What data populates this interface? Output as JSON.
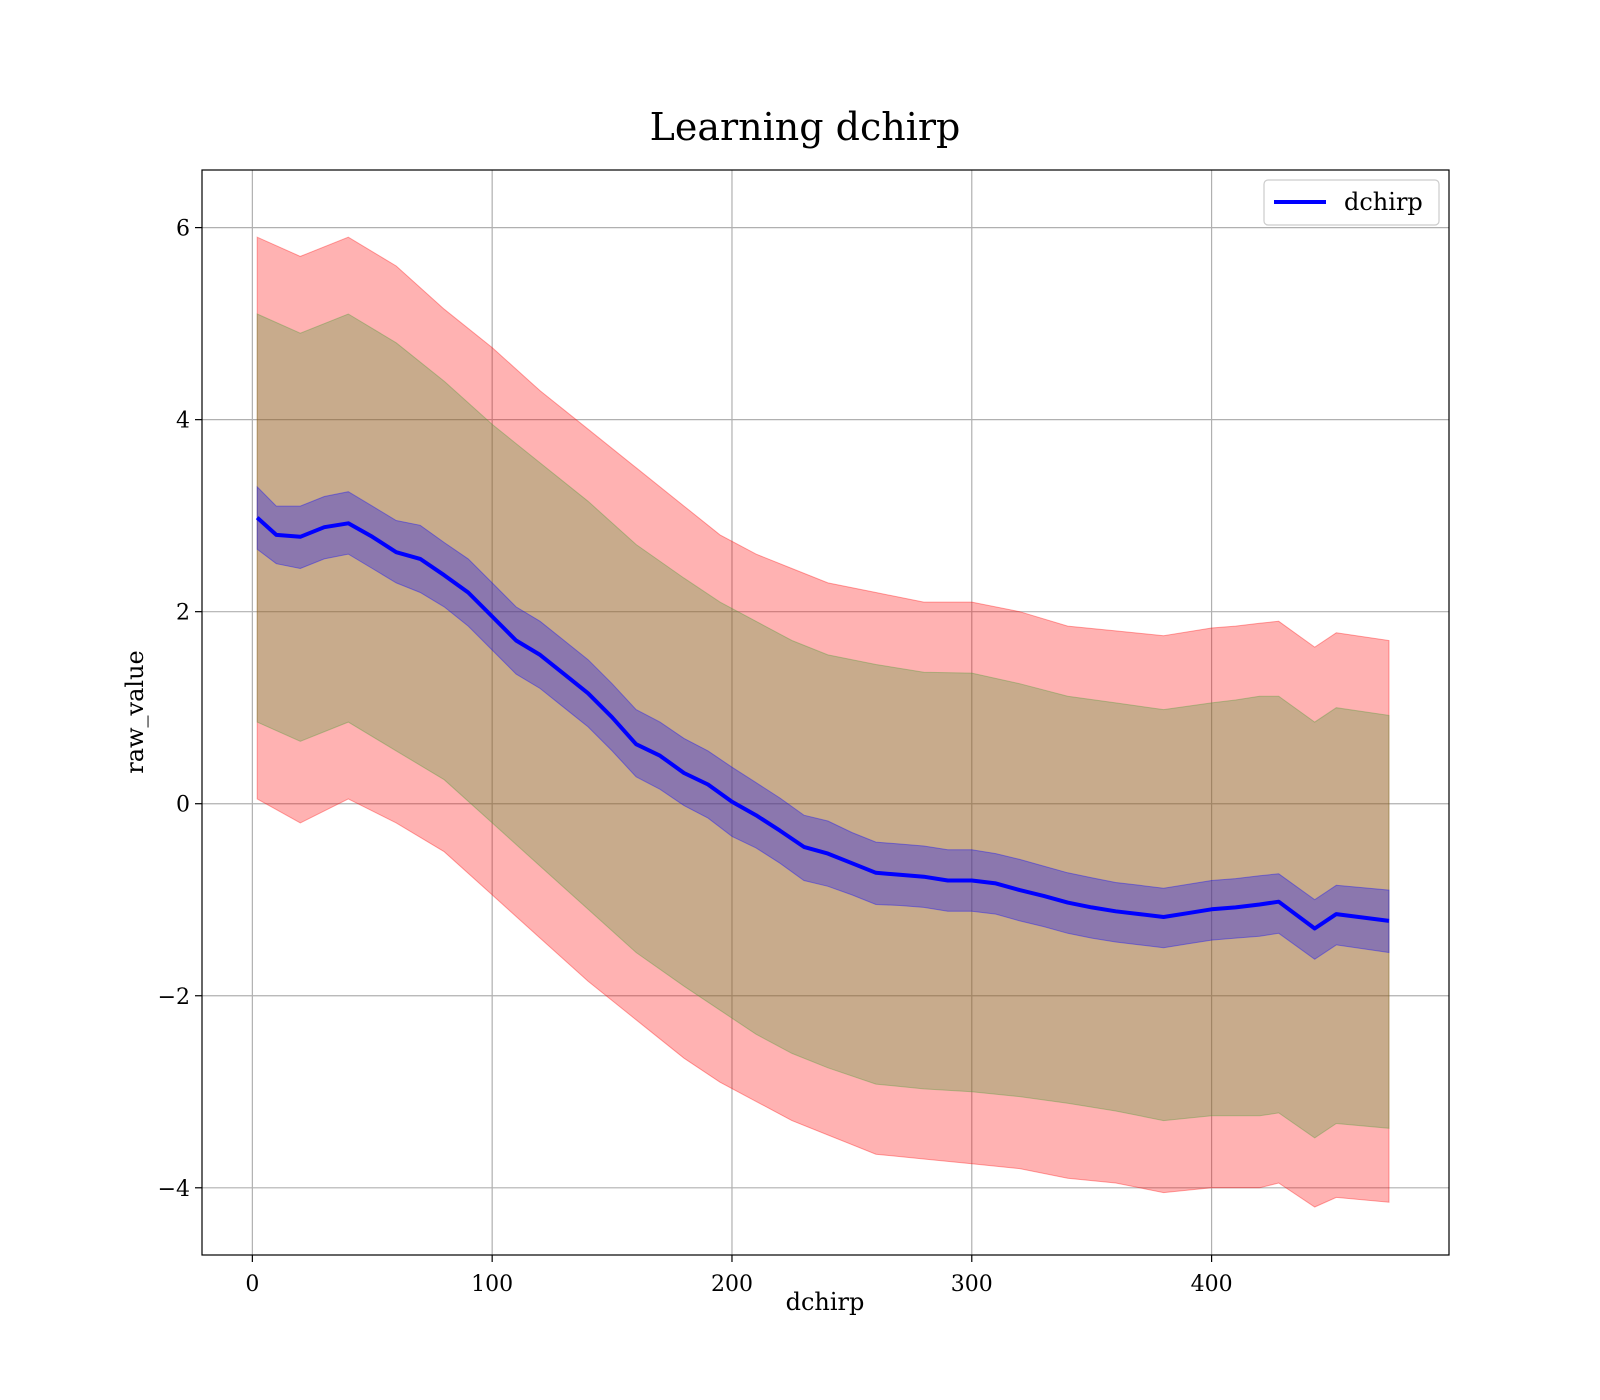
{
  "chart_data": {
    "type": "line",
    "title": "Learning dchirp",
    "xlabel": "dchirp",
    "ylabel": "raw_value",
    "xlim": [
      -21,
      499
    ],
    "ylim": [
      -4.7,
      6.6
    ],
    "xticks": [
      0,
      100,
      200,
      300,
      400
    ],
    "yticks": [
      -4,
      -2,
      0,
      2,
      4,
      6
    ],
    "xtick_labels": [
      "0",
      "100",
      "200",
      "300",
      "400"
    ],
    "ytick_labels": [
      "−4",
      "−2",
      "0",
      "2",
      "4",
      "6"
    ],
    "grid": true,
    "legend_position": "top-right",
    "series": [
      {
        "name": "dchirp",
        "color": "#0000ff",
        "x": [
          2,
          10,
          20,
          30,
          40,
          50,
          60,
          70,
          80,
          90,
          100,
          110,
          120,
          130,
          140,
          150,
          160,
          170,
          180,
          190,
          200,
          210,
          220,
          230,
          240,
          250,
          260,
          270,
          280,
          290,
          300,
          310,
          320,
          330,
          340,
          350,
          360,
          370,
          380,
          390,
          400,
          410,
          420,
          428,
          443,
          452,
          474
        ],
        "y": [
          2.98,
          2.8,
          2.78,
          2.88,
          2.92,
          2.78,
          2.62,
          2.55,
          2.38,
          2.2,
          1.95,
          1.7,
          1.55,
          1.35,
          1.15,
          0.9,
          0.62,
          0.5,
          0.32,
          0.2,
          0.02,
          -0.12,
          -0.28,
          -0.45,
          -0.52,
          -0.62,
          -0.72,
          -0.74,
          -0.76,
          -0.8,
          -0.8,
          -0.83,
          -0.9,
          -0.96,
          -1.03,
          -1.08,
          -1.12,
          -1.15,
          -1.18,
          -1.14,
          -1.1,
          -1.08,
          -1.05,
          -1.02,
          -1.3,
          -1.15,
          -1.22
        ]
      }
    ],
    "bands": [
      {
        "color": "#ff0000",
        "opacity": 0.3,
        "x": [
          2,
          20,
          40,
          60,
          80,
          100,
          120,
          140,
          160,
          180,
          195,
          210,
          225,
          240,
          260,
          280,
          300,
          320,
          340,
          360,
          380,
          400,
          410,
          420,
          428,
          443,
          452,
          474
        ],
        "upper": [
          5.9,
          5.7,
          5.9,
          5.6,
          5.15,
          4.75,
          4.3,
          3.9,
          3.5,
          3.1,
          2.8,
          2.6,
          2.45,
          2.3,
          2.2,
          2.1,
          2.1,
          2.0,
          1.85,
          1.8,
          1.75,
          1.83,
          1.85,
          1.88,
          1.9,
          1.63,
          1.78,
          1.7
        ],
        "lower": [
          0.05,
          -0.2,
          0.05,
          -0.2,
          -0.5,
          -0.95,
          -1.4,
          -1.85,
          -2.25,
          -2.65,
          -2.9,
          -3.1,
          -3.3,
          -3.45,
          -3.65,
          -3.7,
          -3.75,
          -3.8,
          -3.9,
          -3.95,
          -4.05,
          -4.0,
          -4.0,
          -4.0,
          -3.95,
          -4.2,
          -4.1,
          -4.15
        ]
      },
      {
        "color": "#4a9a35",
        "opacity": 0.3,
        "x": [
          2,
          20,
          40,
          60,
          80,
          100,
          120,
          140,
          160,
          180,
          195,
          210,
          225,
          240,
          260,
          280,
          300,
          320,
          340,
          360,
          380,
          400,
          410,
          420,
          428,
          443,
          452,
          474
        ],
        "upper": [
          5.1,
          4.9,
          5.1,
          4.8,
          4.4,
          3.95,
          3.55,
          3.15,
          2.7,
          2.35,
          2.1,
          1.9,
          1.7,
          1.55,
          1.45,
          1.37,
          1.36,
          1.25,
          1.12,
          1.05,
          0.98,
          1.05,
          1.08,
          1.12,
          1.12,
          0.85,
          1.0,
          0.92
        ],
        "lower": [
          0.85,
          0.65,
          0.85,
          0.55,
          0.25,
          -0.2,
          -0.65,
          -1.1,
          -1.55,
          -1.9,
          -2.15,
          -2.4,
          -2.6,
          -2.75,
          -2.92,
          -2.97,
          -3.0,
          -3.05,
          -3.12,
          -3.2,
          -3.3,
          -3.25,
          -3.25,
          -3.25,
          -3.22,
          -3.48,
          -3.33,
          -3.38
        ]
      },
      {
        "color": "#0000ff",
        "opacity": 0.3,
        "x": [
          2,
          10,
          20,
          30,
          40,
          50,
          60,
          70,
          80,
          90,
          100,
          110,
          120,
          130,
          140,
          150,
          160,
          170,
          180,
          190,
          200,
          210,
          220,
          230,
          240,
          250,
          260,
          270,
          280,
          290,
          300,
          310,
          320,
          330,
          340,
          350,
          360,
          370,
          380,
          390,
          400,
          410,
          420,
          428,
          443,
          452,
          474
        ],
        "upper": [
          3.3,
          3.1,
          3.1,
          3.2,
          3.25,
          3.1,
          2.95,
          2.9,
          2.72,
          2.55,
          2.3,
          2.05,
          1.9,
          1.7,
          1.5,
          1.25,
          0.98,
          0.85,
          0.68,
          0.55,
          0.38,
          0.22,
          0.06,
          -0.12,
          -0.18,
          -0.3,
          -0.4,
          -0.42,
          -0.44,
          -0.48,
          -0.48,
          -0.52,
          -0.58,
          -0.65,
          -0.72,
          -0.77,
          -0.82,
          -0.85,
          -0.88,
          -0.84,
          -0.8,
          -0.78,
          -0.75,
          -0.73,
          -1.0,
          -0.85,
          -0.9
        ],
        "lower": [
          2.65,
          2.5,
          2.45,
          2.55,
          2.6,
          2.45,
          2.3,
          2.2,
          2.05,
          1.85,
          1.6,
          1.35,
          1.2,
          1.0,
          0.8,
          0.55,
          0.28,
          0.15,
          -0.02,
          -0.15,
          -0.34,
          -0.46,
          -0.62,
          -0.8,
          -0.86,
          -0.95,
          -1.05,
          -1.06,
          -1.08,
          -1.12,
          -1.12,
          -1.15,
          -1.22,
          -1.28,
          -1.35,
          -1.4,
          -1.44,
          -1.47,
          -1.5,
          -1.46,
          -1.42,
          -1.4,
          -1.38,
          -1.35,
          -1.62,
          -1.47,
          -1.55
        ]
      }
    ]
  }
}
